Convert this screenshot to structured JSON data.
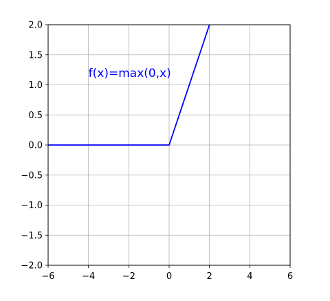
{
  "chart_data": {
    "type": "line",
    "title": "",
    "xlabel": "",
    "ylabel": "",
    "xlim": [
      -6,
      6
    ],
    "ylim": [
      -2,
      2
    ],
    "xticks": [
      -6,
      -4,
      -2,
      0,
      2,
      4,
      6
    ],
    "yticks": [
      -2.0,
      -1.5,
      -1.0,
      -0.5,
      0.0,
      0.5,
      1.0,
      1.5,
      2.0
    ],
    "xtick_labels": [
      "−6",
      "−4",
      "−2",
      "0",
      "2",
      "4",
      "6"
    ],
    "ytick_labels": [
      "−2.0",
      "−1.5",
      "−1.0",
      "−0.5",
      "0.0",
      "0.5",
      "1.0",
      "1.5",
      "2.0"
    ],
    "grid": true,
    "series": [
      {
        "color": "#0000ff",
        "x": [
          -6,
          0,
          2
        ],
        "y": [
          0,
          0,
          2
        ]
      }
    ],
    "annotations": [
      {
        "text": "f(x)=max(0,x)",
        "x": -4,
        "y": 1.2,
        "color": "#0000ff"
      }
    ]
  }
}
